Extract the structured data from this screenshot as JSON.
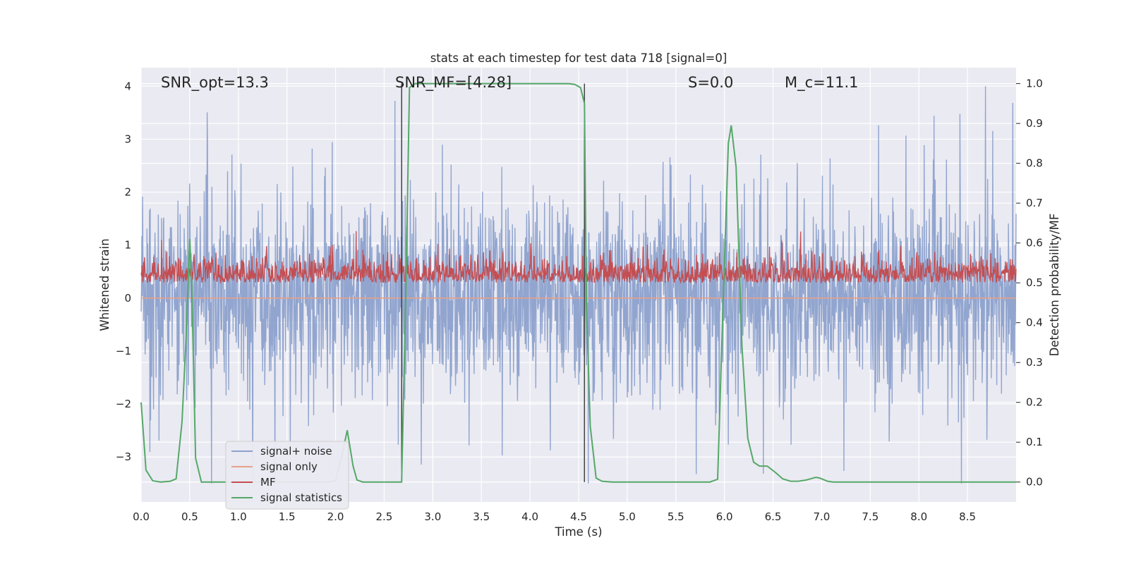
{
  "chart_data": {
    "type": "line",
    "title": "stats at each timestep for test data 718 [signal=0]",
    "xlabel": "Time (s)",
    "ylabel": "Whitened strain",
    "ylabel_right": "Detection probability/MF",
    "xlim": [
      0.0,
      9.0
    ],
    "ylim": [
      -3.85,
      4.35
    ],
    "ylim_right": [
      -0.05,
      1.04
    ],
    "x_ticks": [
      "0.0",
      "0.5",
      "1.0",
      "1.5",
      "2.0",
      "2.5",
      "3.0",
      "3.5",
      "4.0",
      "4.5",
      "5.0",
      "5.5",
      "6.0",
      "6.5",
      "7.0",
      "7.5",
      "8.0",
      "8.5"
    ],
    "y_ticks_left": [
      "4",
      "3",
      "2",
      "1",
      "0",
      "−1",
      "−2",
      "−3"
    ],
    "y_ticks_right": [
      "1.0",
      "0.9",
      "0.8",
      "0.7",
      "0.6",
      "0.5",
      "0.4",
      "0.3",
      "0.2",
      "0.1",
      "0.0"
    ],
    "grid": true,
    "legend_position": "lower-left",
    "annotations": [
      {
        "text": "SNR_opt=13.3"
      },
      {
        "text": "SNR_MF=[4.28]"
      },
      {
        "text": "S=0.0"
      },
      {
        "text": "M_c=11.1"
      }
    ],
    "vertical_lines_x": [
      2.68,
      4.56
    ],
    "series": [
      {
        "name": "signal+ noise",
        "color": "#8ca1cc",
        "description_values": "whitened noise, approx range -3.5 to 4.0, centered at 0",
        "envelope_typical": [
          -1.6,
          2.3
        ],
        "extremes": [
          -3.5,
          4.0
        ]
      },
      {
        "name": "signal only",
        "color": "#e8a088",
        "values_constant": 0.0
      },
      {
        "name": "MF",
        "color": "#c44e52",
        "range_right_axis": [
          0.5,
          0.6
        ]
      },
      {
        "name": "signal statistics",
        "color": "#55a868",
        "axis": "right",
        "x": [
          0.0,
          0.05,
          0.12,
          0.2,
          0.3,
          0.36,
          0.42,
          0.46,
          0.5,
          0.52,
          0.56,
          0.62,
          0.7,
          1.0,
          1.5,
          1.9,
          2.0,
          2.06,
          2.12,
          2.18,
          2.22,
          2.28,
          2.4,
          2.6,
          2.68,
          2.72,
          2.76,
          2.82,
          3.0,
          3.5,
          4.0,
          4.4,
          4.46,
          4.52,
          4.56,
          4.58,
          4.62,
          4.68,
          4.74,
          4.85,
          5.0,
          5.5,
          5.85,
          5.93,
          5.98,
          6.04,
          6.07,
          6.12,
          6.18,
          6.24,
          6.3,
          6.36,
          6.44,
          6.52,
          6.6,
          6.68,
          6.76,
          6.84,
          6.94,
          6.98,
          7.06,
          7.12,
          7.5,
          8.0,
          8.5,
          9.0
        ],
        "values": [
          0.2,
          0.03,
          0.003,
          0.0,
          0.002,
          0.008,
          0.15,
          0.35,
          0.61,
          0.5,
          0.06,
          0.0,
          0.0,
          0.0,
          0.0,
          0.0,
          0.003,
          0.06,
          0.13,
          0.04,
          0.005,
          0.0,
          0.0,
          0.0,
          0.0,
          0.45,
          0.99,
          1.0,
          1.0,
          1.0,
          1.0,
          1.0,
          0.998,
          0.99,
          0.95,
          0.45,
          0.14,
          0.01,
          0.002,
          0.0,
          0.0,
          0.0,
          0.0,
          0.007,
          0.4,
          0.85,
          0.895,
          0.79,
          0.34,
          0.11,
          0.05,
          0.04,
          0.04,
          0.025,
          0.008,
          0.002,
          0.002,
          0.005,
          0.012,
          0.01,
          0.002,
          0.0,
          0.0,
          0.0,
          0.0,
          0.0
        ]
      }
    ]
  }
}
